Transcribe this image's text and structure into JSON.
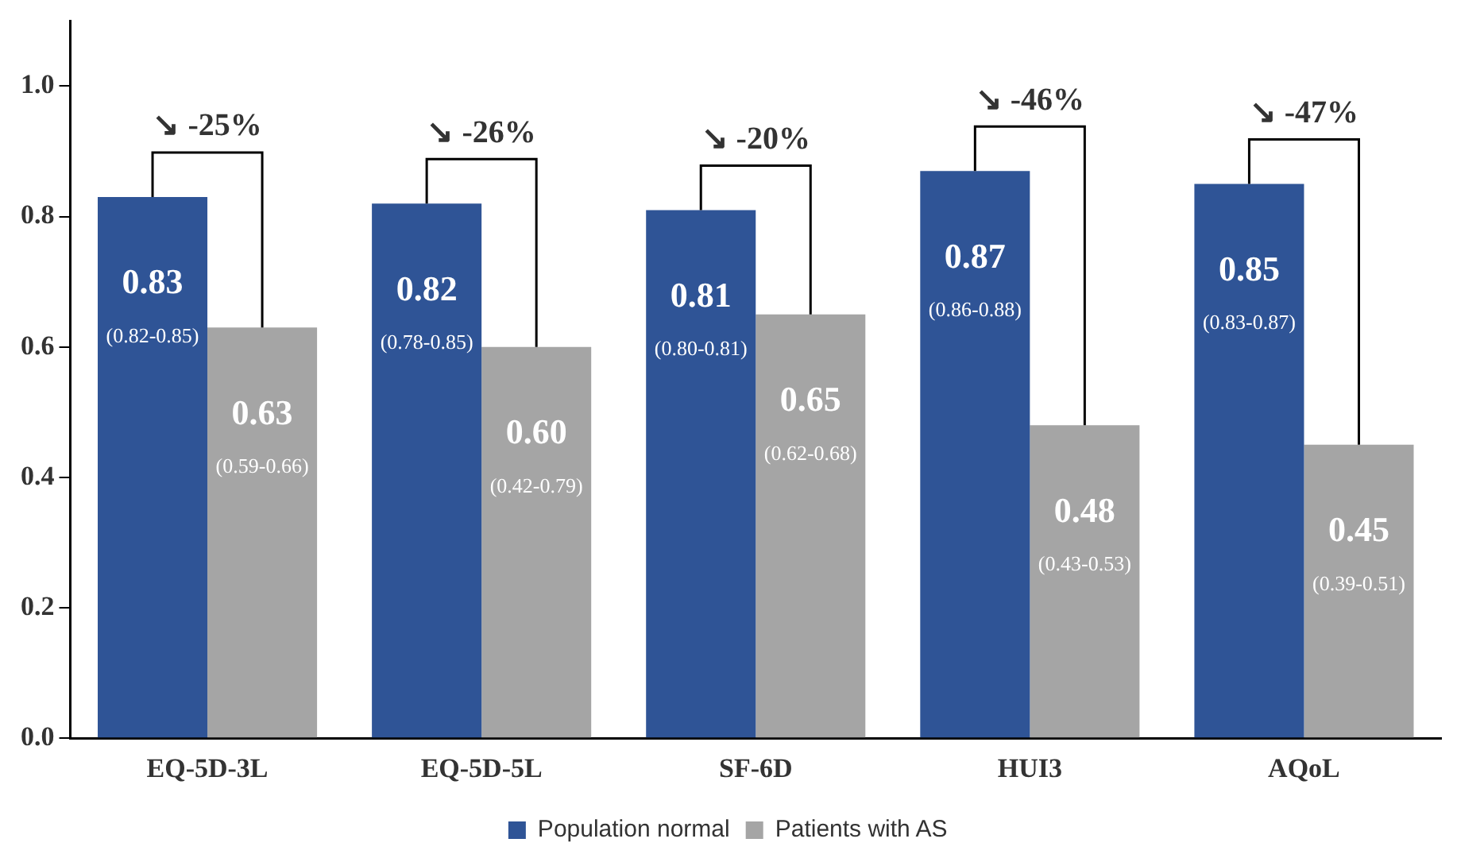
{
  "chart_data": {
    "type": "bar",
    "categories": [
      "EQ-5D-3L",
      "EQ-5D-5L",
      "SF-6D",
      "HUI3",
      "AQoL"
    ],
    "series": [
      {
        "name": "Population normal",
        "color": "#2f5496",
        "values": [
          0.83,
          0.82,
          0.81,
          0.87,
          0.85
        ],
        "value_labels": [
          "0.83\n(0.82-0.85)",
          "0.82\n(0.78-0.85)",
          "0.81\n(0.80-0.81)",
          "0.87\n(0.86-0.88)",
          "0.85\n(0.83-0.87)"
        ]
      },
      {
        "name": "Patients with AS",
        "color": "#a5a5a5",
        "values": [
          0.63,
          0.6,
          0.65,
          0.48,
          0.45
        ],
        "value_labels": [
          "0.63\n(0.59-0.66)",
          "0.60\n(0.42-0.79)",
          "0.65\n(0.62-0.68)",
          "0.48\n(0.43-0.53)",
          "0.45\n(0.39-0.51)"
        ]
      }
    ],
    "ylim": [
      0,
      1.1
    ],
    "yticks": [
      {
        "value": 0,
        "label": "0.0"
      },
      {
        "value": 0.2,
        "label": "0.2"
      },
      {
        "value": 0.4,
        "label": "0.4"
      },
      {
        "value": 0.6,
        "label": "0.6"
      },
      {
        "value": 0.8,
        "label": "0.8"
      },
      {
        "value": 1,
        "label": "1.0"
      }
    ],
    "annotations": [
      "↘ -25%",
      "↘ -26%",
      "↘ -20%",
      "↘ -46%",
      "↘ -47%"
    ],
    "grid": false,
    "legend": "bottom"
  }
}
